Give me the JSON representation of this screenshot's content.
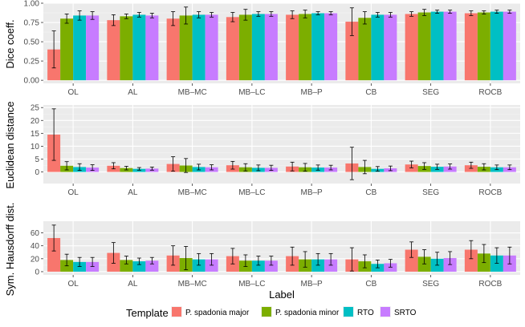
{
  "chart_data": {
    "type": "bar",
    "categories": [
      "OL",
      "AL",
      "MB–MC",
      "MB–LC",
      "MB–P",
      "CB",
      "SEG",
      "ROCB"
    ],
    "xlabel": "Label",
    "legend": {
      "title": "Template",
      "placement": "bottom",
      "items": [
        {
          "name": "P. spadonia major",
          "color": "#F8766D"
        },
        {
          "name": "P. spadonia minor",
          "color": "#7CAE00"
        },
        {
          "name": "RTO",
          "color": "#00BFC4"
        },
        {
          "name": "SRTO",
          "color": "#C77CFF"
        }
      ]
    },
    "panels": [
      {
        "ylabel": "Dice coeff.",
        "ylim": [
          -0.04,
          1.0
        ],
        "yticks": [
          0.0,
          0.25,
          0.5,
          0.75,
          1.0
        ],
        "ytick_labels": [
          "0.00",
          "0.25",
          "0.50",
          "0.75",
          "1.00"
        ],
        "series": [
          {
            "name": "P. spadonia major",
            "values": [
              0.4,
              0.78,
              0.8,
              0.82,
              0.85,
              0.76,
              0.86,
              0.87
            ],
            "errors": [
              0.24,
              0.07,
              0.09,
              0.06,
              0.05,
              0.18,
              0.03,
              0.03
            ]
          },
          {
            "name": "P. spadonia minor",
            "values": [
              0.8,
              0.83,
              0.84,
              0.85,
              0.86,
              0.81,
              0.88,
              0.88
            ],
            "errors": [
              0.06,
              0.03,
              0.11,
              0.07,
              0.05,
              0.08,
              0.04,
              0.02
            ]
          },
          {
            "name": "RTO",
            "values": [
              0.84,
              0.85,
              0.85,
              0.86,
              0.87,
              0.85,
              0.89,
              0.89
            ],
            "errors": [
              0.06,
              0.03,
              0.04,
              0.03,
              0.02,
              0.03,
              0.02,
              0.02
            ]
          },
          {
            "name": "SRTO",
            "values": [
              0.84,
              0.84,
              0.85,
              0.86,
              0.87,
              0.85,
              0.89,
              0.89
            ],
            "errors": [
              0.05,
              0.03,
              0.03,
              0.03,
              0.02,
              0.03,
              0.02,
              0.02
            ]
          }
        ]
      },
      {
        "ylabel": "Euclidean distance",
        "ylim": [
          -4.5,
          26
        ],
        "yticks": [
          0,
          5,
          10,
          15,
          20,
          25
        ],
        "ytick_labels": [
          "0",
          "5",
          "10",
          "15",
          "20",
          "25"
        ],
        "series": [
          {
            "name": "P. spadonia major",
            "values": [
              14.5,
              2.4,
              3.1,
              2.6,
              2.1,
              3.3,
              2.9,
              2.6
            ],
            "errors": [
              10,
              1.2,
              2.8,
              1.5,
              1.7,
              6.3,
              1.3,
              1.2
            ]
          },
          {
            "name": "P. spadonia minor",
            "values": [
              2.4,
              1.5,
              2.5,
              1.8,
              1.8,
              1.9,
              2.3,
              2.0
            ],
            "errors": [
              1.6,
              0.7,
              2.7,
              1.4,
              1.5,
              2.6,
              1.3,
              1.2
            ]
          },
          {
            "name": "RTO",
            "values": [
              1.9,
              1.2,
              1.9,
              1.6,
              1.7,
              1.2,
              2.0,
              1.8
            ],
            "errors": [
              1.3,
              0.5,
              1.1,
              1.1,
              1.0,
              0.9,
              1.0,
              0.9
            ]
          },
          {
            "name": "SRTO",
            "values": [
              1.7,
              1.3,
              1.8,
              1.6,
              1.7,
              1.4,
              2.1,
              1.8
            ],
            "errors": [
              1.1,
              0.6,
              1.0,
              1.0,
              0.9,
              0.9,
              1.0,
              0.9
            ]
          }
        ]
      },
      {
        "ylabel": "Sym. Hausdorff dist.",
        "ylim": [
          -5,
          78
        ],
        "yticks": [
          0,
          20,
          40,
          60
        ],
        "ytick_labels": [
          "0",
          "20",
          "40",
          "60"
        ],
        "series": [
          {
            "name": "P. spadonia major",
            "values": [
              52,
              29,
              25,
              24,
              24,
              19,
              34,
              34
            ],
            "errors": [
              20,
              16,
              15,
              12,
              14,
              18,
              12,
              14
            ]
          },
          {
            "name": "P. spadonia minor",
            "values": [
              18,
              18,
              21,
              17,
              19,
              16,
              23,
              28
            ],
            "errors": [
              9,
              6,
              18,
              9,
              12,
              10,
              11,
              14
            ]
          },
          {
            "name": "RTO",
            "values": [
              15,
              16,
              19,
              17,
              19,
              12,
              20,
              25
            ],
            "errors": [
              7,
              5,
              9,
              7,
              9,
              6,
              10,
              12
            ]
          },
          {
            "name": "SRTO",
            "values": [
              15,
              17,
              19,
              17,
              19,
              13,
              21,
              25
            ],
            "errors": [
              7,
              5,
              9,
              7,
              9,
              6,
              10,
              13
            ]
          }
        ]
      }
    ]
  }
}
